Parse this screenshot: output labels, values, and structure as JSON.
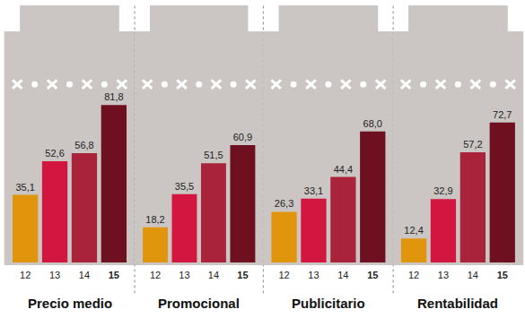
{
  "chart_data": [
    {
      "type": "bar",
      "title": "Precio medio",
      "categories": [
        "12",
        "13",
        "14",
        "15"
      ],
      "values": [
        35.1,
        52.6,
        56.8,
        81.8
      ],
      "value_labels": [
        "35,1",
        "52,6",
        "56,8",
        "81,8"
      ],
      "colors": [
        "#e0950c",
        "#d3163f",
        "#a9233b",
        "#6e1020"
      ],
      "ylim": [
        0,
        100
      ],
      "data_labels": true,
      "tick_labels": "x",
      "grid": false
    },
    {
      "type": "bar",
      "title": "Promocional",
      "categories": [
        "12",
        "13",
        "14",
        "15"
      ],
      "values": [
        18.2,
        35.5,
        51.5,
        60.9
      ],
      "value_labels": [
        "18,2",
        "35,5",
        "51,5",
        "60,9"
      ],
      "colors": [
        "#e0950c",
        "#d3163f",
        "#a9233b",
        "#6e1020"
      ],
      "ylim": [
        0,
        100
      ],
      "data_labels": true,
      "tick_labels": "x",
      "grid": false
    },
    {
      "type": "bar",
      "title": "Publicitario",
      "categories": [
        "12",
        "13",
        "14",
        "15"
      ],
      "values": [
        26.3,
        33.1,
        44.4,
        68.0
      ],
      "value_labels": [
        "26,3",
        "33,1",
        "44,4",
        "68,0"
      ],
      "colors": [
        "#e0950c",
        "#d3163f",
        "#a9233b",
        "#6e1020"
      ],
      "ylim": [
        0,
        100
      ],
      "data_labels": true,
      "tick_labels": "x",
      "grid": false
    },
    {
      "type": "bar",
      "title": "Rentabilidad",
      "categories": [
        "12",
        "13",
        "14",
        "15"
      ],
      "values": [
        12.4,
        32.9,
        57.2,
        72.7
      ],
      "value_labels": [
        "12,4",
        "32,9",
        "57,2",
        "72,7"
      ],
      "colors": [
        "#e0950c",
        "#d3163f",
        "#a9233b",
        "#6e1020"
      ],
      "ylim": [
        0,
        100
      ],
      "data_labels": true,
      "tick_labels": "x",
      "grid": false
    }
  ]
}
